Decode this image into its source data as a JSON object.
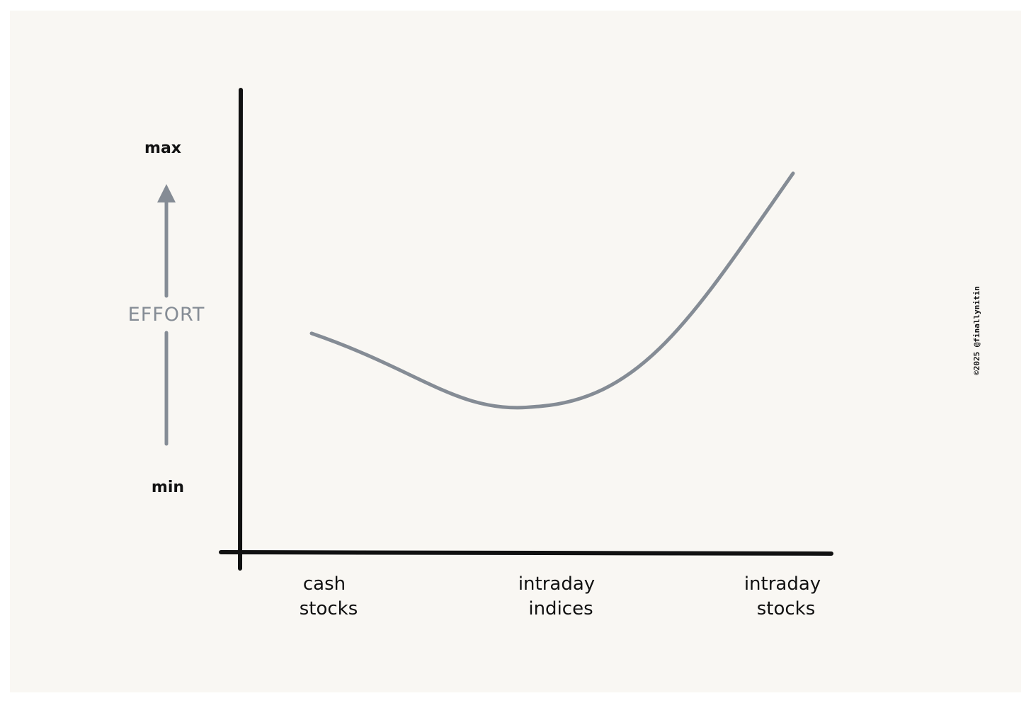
{
  "chart_data": {
    "type": "line",
    "title": "",
    "ylabel": "EFFORT",
    "y_scale_labels": {
      "top": "max",
      "bottom": "min"
    },
    "categories": [
      [
        "cash",
        "stocks"
      ],
      [
        "intraday",
        "indices"
      ],
      [
        "intraday",
        "stocks"
      ]
    ],
    "ylim": [
      0,
      100
    ],
    "values": [
      48,
      32,
      83
    ],
    "curve_shape": "smooth, dips to a minimum near the middle category then rises steeply",
    "grid": false,
    "legend": "none",
    "colors": {
      "background": "#f9f7f3",
      "axis": "#111111",
      "series": "#858c95"
    }
  },
  "credit": "©2025 @finallynitin"
}
